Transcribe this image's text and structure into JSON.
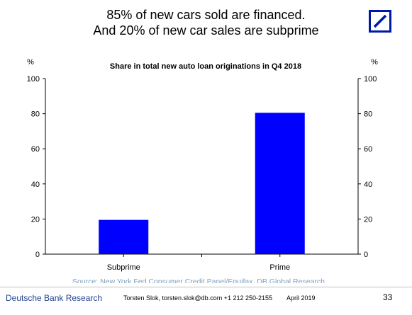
{
  "headline": {
    "line1": "85% of new cars sold are financed.",
    "line2": "And 20% of new car sales are subprime"
  },
  "logo": {
    "icon": "deutsche-bank-logo-icon",
    "color": "#0018a8"
  },
  "chart_data": {
    "type": "bar",
    "title": "Share in total new auto loan originations in Q4 2018",
    "categories": [
      "Subprime",
      "Prime"
    ],
    "values": [
      19.5,
      80.5
    ],
    "ylabel_left": "%",
    "ylabel_right": "%",
    "ylim": [
      0,
      100
    ],
    "yticks": [
      0,
      20,
      40,
      60,
      80,
      100
    ],
    "grid": false,
    "bar_color": "#0000ff",
    "source": "Source: New York Fed Consumer Credit Panel/Equifax, DB Global Research"
  },
  "footer": {
    "brand": "Deutsche Bank Research",
    "contact": "Torsten Slok, torsten.slok@db.com  +1 212 250-2155",
    "date": "April 2019",
    "page": "33"
  },
  "colors": {
    "brand_blue": "#1f3f8f",
    "source_text": "#7f9fbf"
  }
}
